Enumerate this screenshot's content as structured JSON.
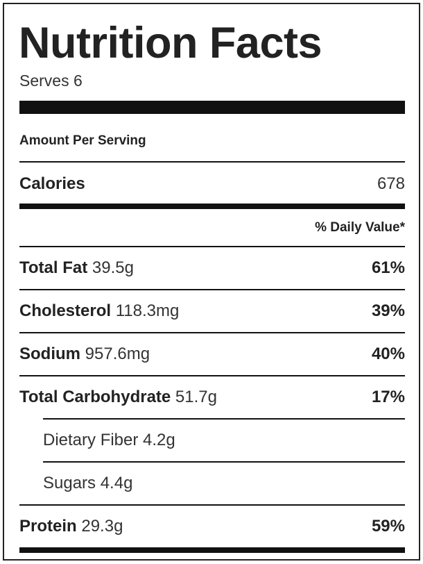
{
  "label": {
    "title": "Nutrition Facts",
    "serves": "Serves 6",
    "amount_per_serving": "Amount Per Serving",
    "calories": {
      "label": "Calories",
      "value": "678"
    },
    "daily_value_header": "% Daily Value*",
    "nutrients": [
      {
        "name": "Total Fat",
        "amount": "39.5g",
        "dv": "61%"
      },
      {
        "name": "Cholesterol",
        "amount": "118.3mg",
        "dv": "39%"
      },
      {
        "name": "Sodium",
        "amount": "957.6mg",
        "dv": "40%"
      },
      {
        "name": "Total Carbohydrate",
        "amount": "51.7g",
        "dv": "17%"
      }
    ],
    "sub_nutrients": [
      {
        "text": "Dietary Fiber 4.2g"
      },
      {
        "text": "Sugars 4.4g"
      }
    ],
    "protein": {
      "name": "Protein",
      "amount": "29.3g",
      "dv": "59%"
    }
  }
}
